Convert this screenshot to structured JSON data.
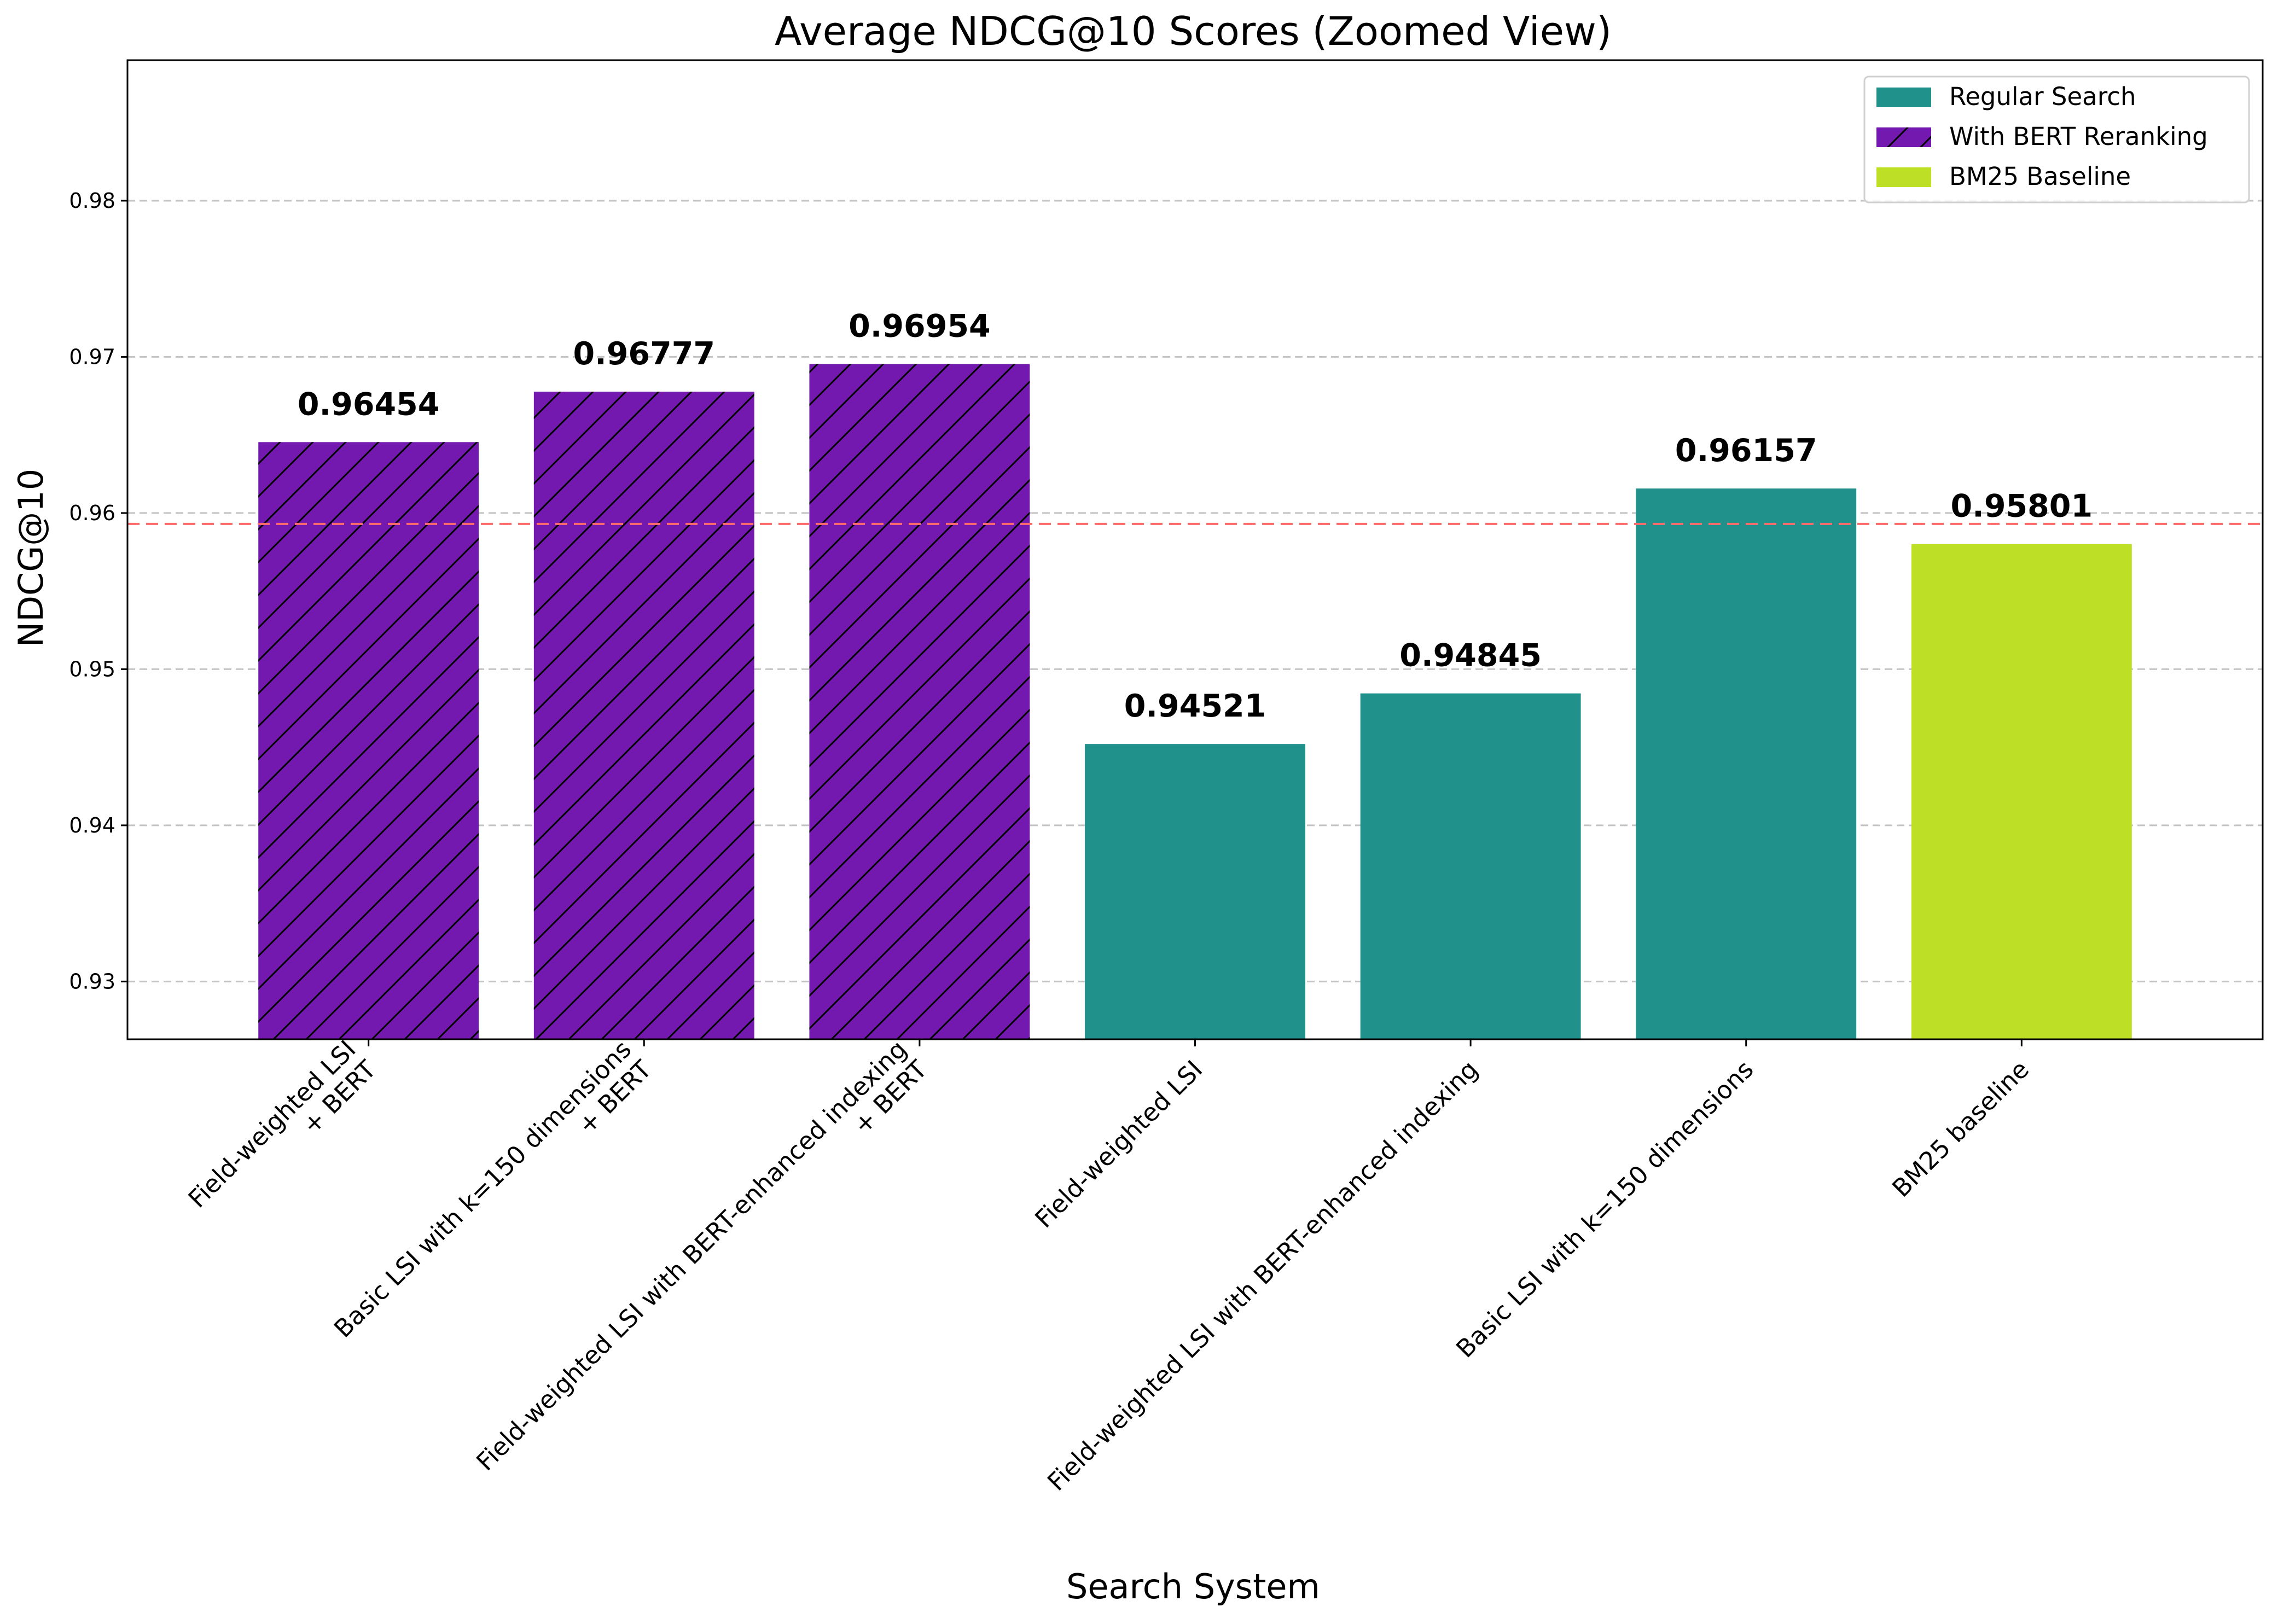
{
  "chart_data": {
    "type": "bar",
    "title": "Average NDCG@10 Scores (Zoomed View)",
    "xlabel": "Search System",
    "ylabel": "NDCG@10",
    "ylim": [
      0.9263,
      0.989
    ],
    "yticks": [
      0.93,
      0.94,
      0.95,
      0.96,
      0.97,
      0.98
    ],
    "ytick_labels": [
      "0.93",
      "0.94",
      "0.95",
      "0.96",
      "0.97",
      "0.98"
    ],
    "grid": true,
    "reference_line": {
      "value": 0.9593,
      "style": "dashed",
      "color": "#ff6b6b"
    },
    "legend_position": "top-right",
    "legend": [
      {
        "label": "Regular Search",
        "color": "#21918c",
        "hatch": false
      },
      {
        "label": "With BERT Reranking",
        "color": "#7419b0",
        "hatch": true
      },
      {
        "label": "BM25 Baseline",
        "color": "#bddf26",
        "hatch": false
      }
    ],
    "bars": [
      {
        "label_lines": [
          "Field-weighted LSI",
          "+ BERT"
        ],
        "value": 0.96454,
        "value_label": "0.96454",
        "group": "With BERT Reranking"
      },
      {
        "label_lines": [
          "Basic LSI with k=150 dimensions",
          "+ BERT"
        ],
        "value": 0.96777,
        "value_label": "0.96777",
        "group": "With BERT Reranking"
      },
      {
        "label_lines": [
          "Field-weighted LSI with BERT-enhanced indexing",
          "+ BERT"
        ],
        "value": 0.96954,
        "value_label": "0.96954",
        "group": "With BERT Reranking"
      },
      {
        "label_lines": [
          "Field-weighted LSI"
        ],
        "value": 0.94521,
        "value_label": "0.94521",
        "group": "Regular Search"
      },
      {
        "label_lines": [
          "Field-weighted LSI with BERT-enhanced indexing"
        ],
        "value": 0.94845,
        "value_label": "0.94845",
        "group": "Regular Search"
      },
      {
        "label_lines": [
          "Basic LSI with k=150 dimensions"
        ],
        "value": 0.96157,
        "value_label": "0.96157",
        "group": "Regular Search"
      },
      {
        "label_lines": [
          "BM25 baseline"
        ],
        "value": 0.95801,
        "value_label": "0.95801",
        "group": "BM25 Baseline"
      }
    ]
  }
}
